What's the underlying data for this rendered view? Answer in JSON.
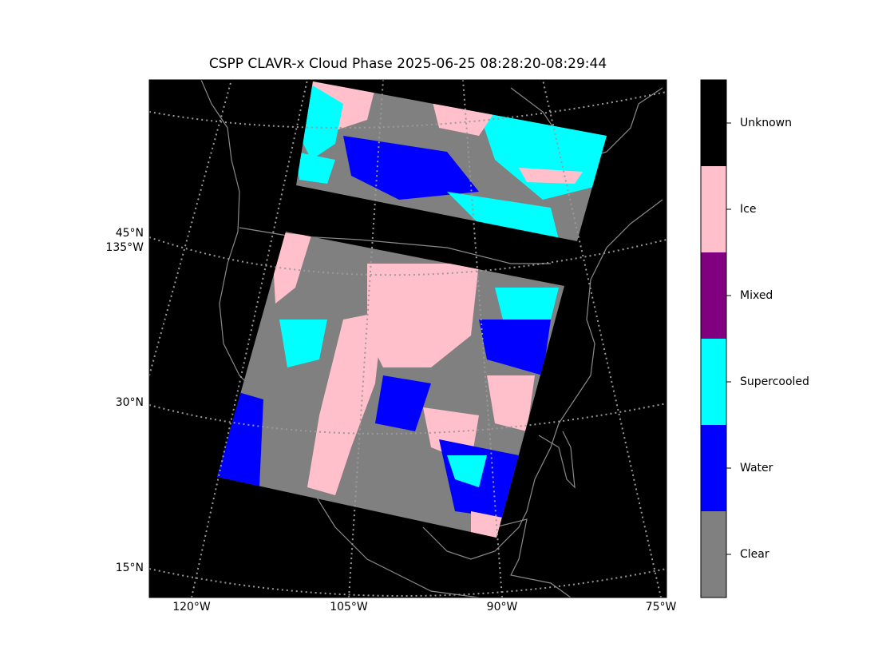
{
  "title": "CSPP CLAVR-x Cloud Phase 2025-06-25 08:28:20-08:29:44",
  "map": {
    "lat_labels": [
      "45°N",
      "30°N",
      "15°N"
    ],
    "lon_label_left": "135°W",
    "lon_labels_bottom": [
      "120°W",
      "105°W",
      "90°W",
      "75°W"
    ]
  },
  "colorbar": {
    "classes": [
      {
        "name": "Clear",
        "color": "#808080"
      },
      {
        "name": "Water",
        "color": "#0000ff"
      },
      {
        "name": "Supercooled",
        "color": "#00ffff"
      },
      {
        "name": "Mixed",
        "color": "#800080"
      },
      {
        "name": "Ice",
        "color": "#ffc0cb"
      },
      {
        "name": "Unknown",
        "color": "#000000"
      }
    ]
  }
}
